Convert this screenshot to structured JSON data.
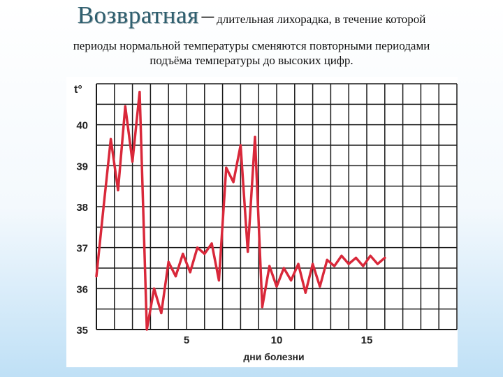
{
  "header": {
    "title_word": "Возвратная",
    "title_dash": "–",
    "title_rest": "длительная лихорадка, в течение которой",
    "line2": "периоды нормальной температуры сменяются повторными периодами",
    "line3": "подъёма температуры до высоких цифр."
  },
  "colors": {
    "line": "#d9283a",
    "grid": "#1a1a1a",
    "title": "#2f5f6f"
  },
  "chart_data": {
    "type": "line",
    "title": "",
    "ylabel": "t°",
    "xlabel": "дни болезни",
    "ylim": [
      35,
      41
    ],
    "xlim": [
      0,
      20
    ],
    "y_ticks": [
      35,
      36,
      37,
      38,
      39,
      40
    ],
    "x_ticks": [
      5,
      10,
      15
    ],
    "grid": true,
    "series": [
      {
        "values": [
          [
            0.0,
            36.3
          ],
          [
            0.4,
            38.0
          ],
          [
            0.8,
            39.65
          ],
          [
            1.2,
            38.4
          ],
          [
            1.6,
            40.45
          ],
          [
            2.0,
            39.1
          ],
          [
            2.4,
            40.8
          ],
          [
            2.8,
            35.0
          ],
          [
            3.2,
            36.0
          ],
          [
            3.6,
            35.4
          ],
          [
            4.0,
            36.65
          ],
          [
            4.4,
            36.3
          ],
          [
            4.8,
            36.85
          ],
          [
            5.2,
            36.4
          ],
          [
            5.6,
            37.0
          ],
          [
            6.0,
            36.85
          ],
          [
            6.4,
            37.1
          ],
          [
            6.8,
            36.2
          ],
          [
            7.2,
            38.95
          ],
          [
            7.6,
            38.6
          ],
          [
            8.0,
            39.5
          ],
          [
            8.4,
            36.9
          ],
          [
            8.8,
            39.7
          ],
          [
            9.2,
            35.55
          ],
          [
            9.6,
            36.55
          ],
          [
            10.0,
            36.05
          ],
          [
            10.4,
            36.5
          ],
          [
            10.8,
            36.2
          ],
          [
            11.2,
            36.6
          ],
          [
            11.6,
            35.9
          ],
          [
            12.0,
            36.6
          ],
          [
            12.4,
            36.05
          ],
          [
            12.8,
            36.7
          ],
          [
            13.2,
            36.55
          ],
          [
            13.6,
            36.8
          ],
          [
            14.0,
            36.6
          ],
          [
            14.4,
            36.75
          ],
          [
            14.8,
            36.55
          ],
          [
            15.2,
            36.8
          ],
          [
            15.6,
            36.6
          ],
          [
            16.0,
            36.75
          ]
        ]
      }
    ]
  }
}
